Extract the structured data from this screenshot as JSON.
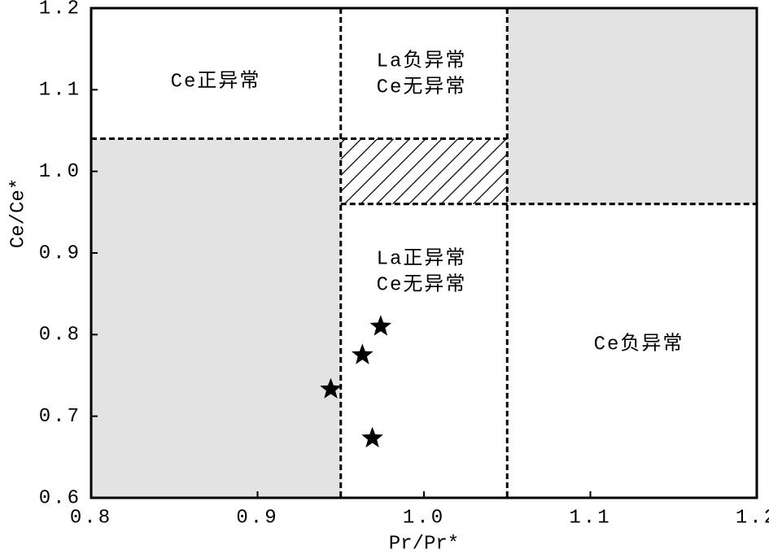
{
  "chart_data": {
    "type": "scatter",
    "xlabel": "Pr/Pr*",
    "ylabel": "Ce/Ce*",
    "xlim": [
      0.8,
      1.2
    ],
    "ylim": [
      0.6,
      1.2
    ],
    "xticks": [
      0.8,
      0.9,
      {
        "value": 1,
        "label": "1.0"
      },
      1.1,
      1.2
    ],
    "yticks": [
      0.6,
      0.7,
      0.8,
      0.9,
      {
        "value": 1,
        "label": "1.0"
      },
      1.1,
      1.2
    ],
    "thresholds": {
      "x": [
        0.95,
        1.05
      ],
      "y": [
        0.96,
        1.04
      ]
    },
    "annotations": [
      {
        "lines": [
          "Ce正异常"
        ]
      },
      {
        "lines": [
          "La负异常",
          "Ce无异常"
        ]
      },
      {
        "lines": [
          "La正异常",
          "Ce无异常"
        ]
      },
      {
        "lines": [
          "Ce负异常"
        ]
      }
    ],
    "series": [
      {
        "color": "#000000",
        "x": [
          0.944,
          0.963,
          0.974,
          0.969
        ],
        "values": [
          0.733,
          0.775,
          0.81,
          0.673
        ]
      }
    ]
  }
}
